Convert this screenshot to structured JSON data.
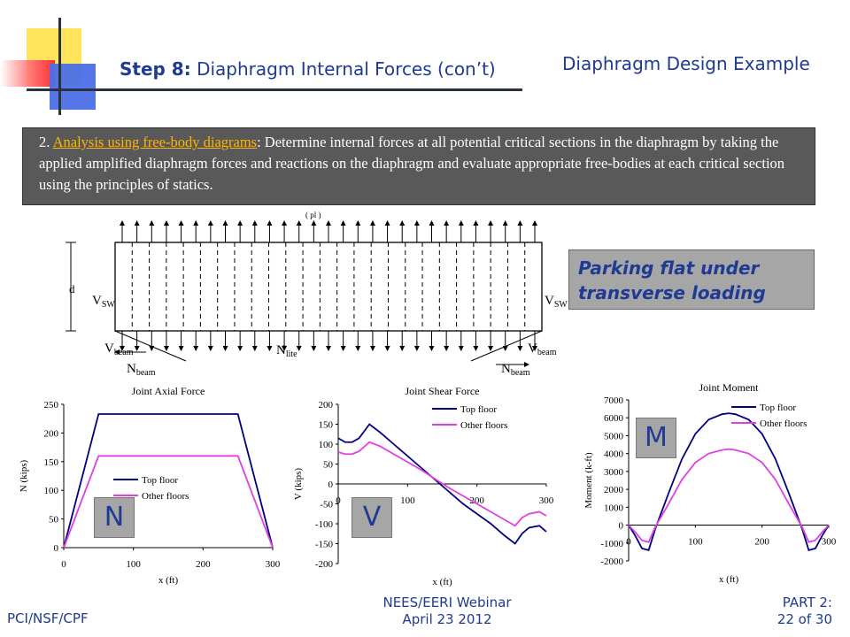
{
  "header": {
    "step_label": "Step 8:",
    "step_title": " Diaphragm Internal Forces (con’t)",
    "presentation_title": "Diaphragm Design Example"
  },
  "description": {
    "number": "2.",
    "link_text": "Analysis using free-body diagrams",
    "body": ": Determine internal forces at all potential critical sections in the diaphragm by taking the applied amplified diaphragm forces and reactions on the diaphragm and evaluate appropriate free-bodies at each critical section using the principles of statics."
  },
  "callout": {
    "text": "Parking flat under transverse loading"
  },
  "diagram": {
    "d": "d",
    "vsw_left": "V",
    "vsw_right": "V",
    "vsw_sub": "SW",
    "v": "V",
    "beam_sub": "beam",
    "n": "N",
    "n_lite": "N",
    "lite_sub": "lite",
    "top_label": "( pl )"
  },
  "chart_data": [
    {
      "type": "line",
      "title": "Joint Axial Force",
      "xlabel": "x (ft)",
      "ylabel": "N (kips)",
      "xlim": [
        0,
        300
      ],
      "ylim": [
        0,
        250
      ],
      "xticks": [
        0,
        100,
        200,
        300
      ],
      "yticks": [
        0,
        50,
        100,
        150,
        200,
        250
      ],
      "legend": "bottom-right",
      "series": [
        {
          "name": "Top floor",
          "color": "#000080",
          "x": [
            0,
            50,
            250,
            300
          ],
          "y": [
            0,
            233,
            233,
            0
          ]
        },
        {
          "name": "Other floors",
          "color": "#e040e0",
          "x": [
            0,
            50,
            250,
            300
          ],
          "y": [
            0,
            160,
            160,
            0
          ]
        }
      ],
      "tag": "N"
    },
    {
      "type": "line",
      "title": "Joint Shear Force",
      "xlabel": "x (ft)",
      "ylabel": "V (kips)",
      "xlim": [
        0,
        300
      ],
      "ylim": [
        -200,
        200
      ],
      "xticks": [
        0,
        100,
        200,
        300
      ],
      "yticks": [
        -200,
        -150,
        -100,
        -50,
        0,
        50,
        100,
        150,
        200
      ],
      "legend": "top-right",
      "series": [
        {
          "name": "Top floor",
          "color": "#000080",
          "x": [
            0,
            10,
            20,
            30,
            45,
            60,
            80,
            100,
            120,
            140,
            160,
            180,
            200,
            220,
            240,
            255,
            265,
            275,
            290,
            300
          ],
          "y": [
            115,
            105,
            105,
            115,
            150,
            130,
            100,
            70,
            40,
            10,
            -20,
            -50,
            -75,
            -100,
            -130,
            -150,
            -125,
            -110,
            -105,
            -120
          ]
        },
        {
          "name": "Other floors",
          "color": "#e040e0",
          "x": [
            0,
            10,
            20,
            30,
            45,
            60,
            80,
            100,
            120,
            140,
            160,
            180,
            200,
            220,
            240,
            255,
            265,
            275,
            290,
            300
          ],
          "y": [
            80,
            75,
            75,
            82,
            105,
            95,
            75,
            55,
            35,
            12,
            -10,
            -30,
            -50,
            -70,
            -90,
            -105,
            -85,
            -75,
            -70,
            -80
          ]
        }
      ],
      "tag": "V"
    },
    {
      "type": "line",
      "title": "Joint Moment",
      "xlabel": "x (ft)",
      "ylabel": "Moment (k-ft)",
      "xlim": [
        0,
        300
      ],
      "ylim": [
        -2000,
        7000
      ],
      "xticks": [
        0,
        100,
        200,
        300
      ],
      "yticks": [
        -2000,
        -1000,
        0,
        1000,
        2000,
        3000,
        4000,
        5000,
        6000,
        7000
      ],
      "legend": "top-right",
      "series": [
        {
          "name": "Top floor",
          "color": "#000080",
          "x": [
            0,
            10,
            20,
            30,
            40,
            60,
            80,
            100,
            120,
            140,
            150,
            160,
            180,
            200,
            220,
            240,
            260,
            270,
            280,
            290,
            300
          ],
          "y": [
            0,
            -600,
            -1300,
            -1400,
            -200,
            1800,
            3700,
            5100,
            5900,
            6200,
            6250,
            6200,
            5900,
            5100,
            3700,
            1800,
            -200,
            -1400,
            -1300,
            -600,
            0
          ]
        },
        {
          "name": "Other floors",
          "color": "#e040e0",
          "x": [
            0,
            10,
            20,
            30,
            40,
            60,
            80,
            100,
            120,
            140,
            150,
            160,
            180,
            200,
            220,
            240,
            260,
            270,
            280,
            290,
            300
          ],
          "y": [
            0,
            -400,
            -850,
            -950,
            -100,
            1200,
            2550,
            3500,
            4000,
            4200,
            4250,
            4200,
            4000,
            3500,
            2550,
            1200,
            -100,
            -950,
            -850,
            -400,
            0
          ]
        }
      ],
      "tag": "M"
    }
  ],
  "footer": {
    "left": "PCI/NSF/CPF",
    "center_line1": "NEES/EERI Webinar",
    "center_line2": "April 23 2012",
    "right_line1": "PART 2:",
    "right_line2": "22 of 30"
  }
}
